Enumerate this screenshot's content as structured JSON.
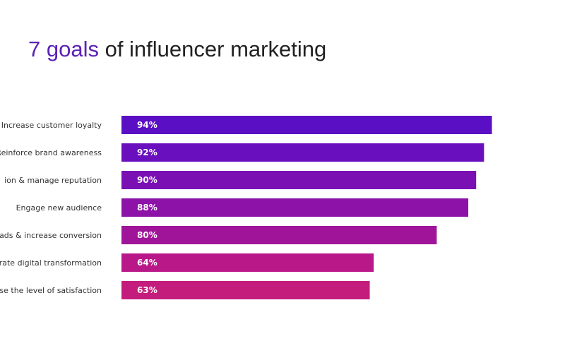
{
  "title": {
    "accent": "7 goals",
    "rest": " of influencer marketing"
  },
  "colors": {
    "title_accent": "#5b21b6",
    "bars": [
      "#5b0fc4",
      "#6a0fbd",
      "#7a10b4",
      "#8c12a8",
      "#a0149a",
      "#b81888",
      "#c41c7c"
    ],
    "label_text": "#333333",
    "value_text": "#ffffff"
  },
  "chart_data": {
    "type": "bar",
    "orientation": "horizontal",
    "categories": [
      "Increase customer loyalty",
      "Reinforce brand awareness",
      "ion & manage reputation",
      "Engage new audience",
      "ads & increase conversion",
      "rate digital transformation",
      "se the level of satisfaction"
    ],
    "values": [
      94,
      92,
      90,
      88,
      80,
      64,
      63
    ],
    "value_labels": [
      "94%",
      "92%",
      "90%",
      "88%",
      "80%",
      "64%",
      "63%"
    ],
    "xlim": [
      0,
      100
    ],
    "grid": false,
    "legend": "none"
  }
}
